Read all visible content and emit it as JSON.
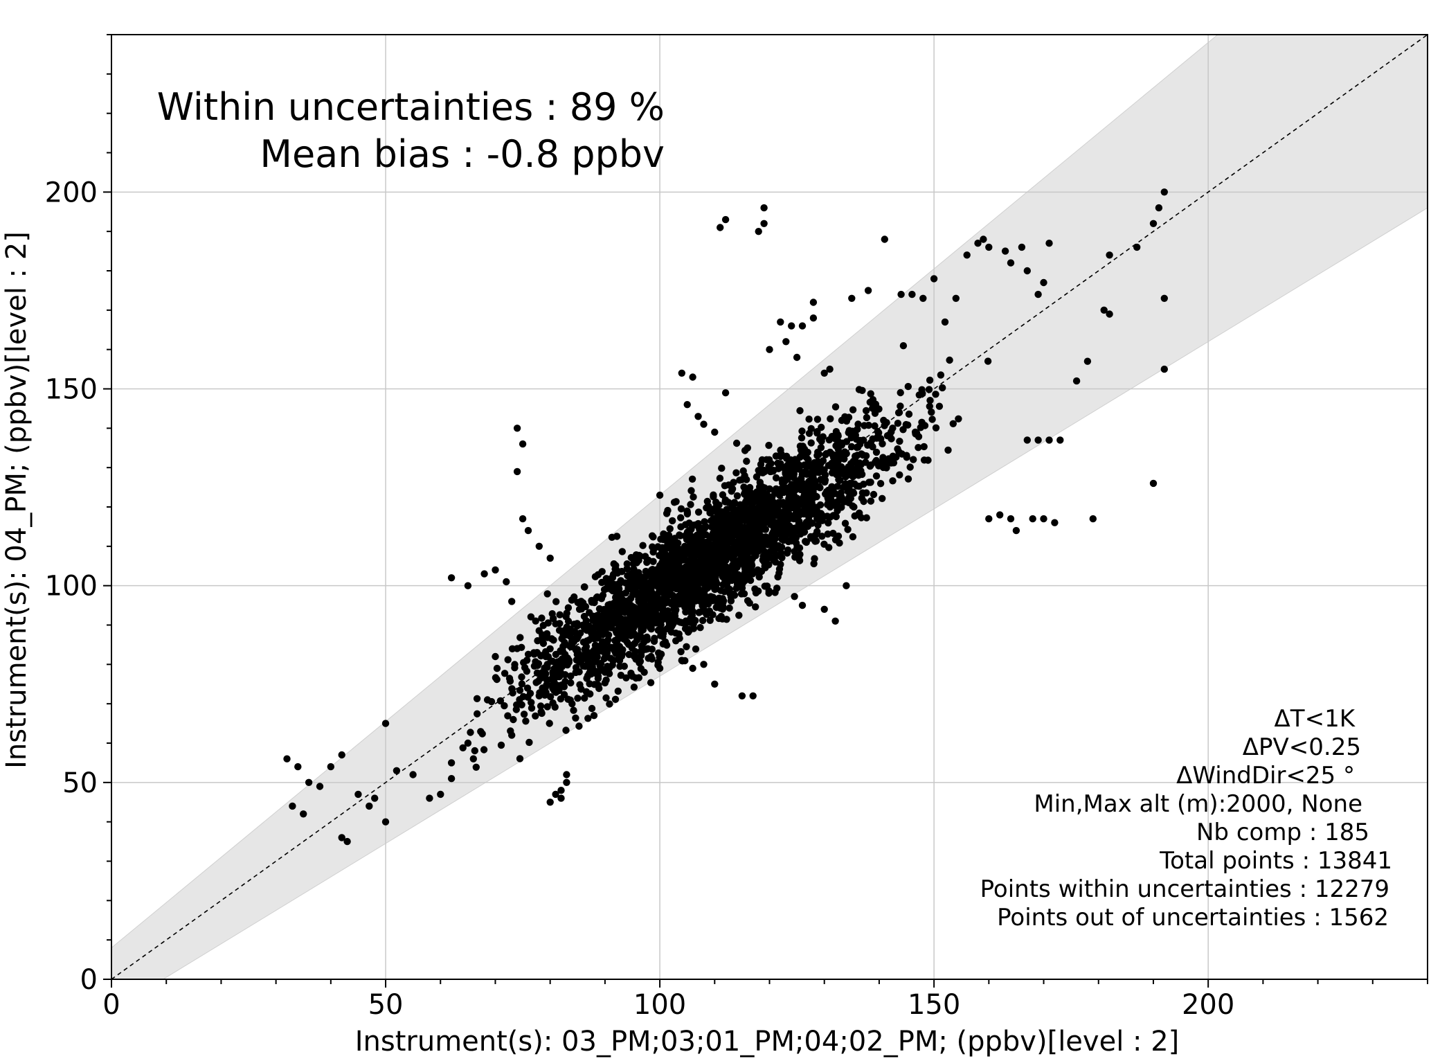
{
  "chart_data": {
    "type": "scatter",
    "title": "",
    "xlabel": "Instrument(s): 03_PM;03;01_PM;04;02_PM; (ppbv)[level : 2]",
    "ylabel": "Instrument(s): 04_PM; (ppbv)[level : 2]",
    "xlim": [
      0,
      240
    ],
    "ylim": [
      0,
      240
    ],
    "x_major_ticks": [
      0,
      50,
      100,
      150,
      200
    ],
    "y_major_ticks": [
      0,
      50,
      100,
      150,
      200
    ],
    "x_tick_labels": [
      "0",
      "50",
      "100",
      "150",
      "200"
    ],
    "y_tick_labels": [
      "0",
      "50",
      "100",
      "150",
      "200"
    ],
    "minor_tick_step": 10,
    "grid": true,
    "identity_line": {
      "style": "dashed",
      "color": "#000000"
    },
    "uncertainty_band": {
      "relative": 0.15,
      "absolute": 8,
      "color": "#e6e6e6"
    },
    "point_color": "#000000",
    "summary": {
      "within": "Within uncertainties : 89 %",
      "bias": "Mean bias : -0.8 ppbv"
    },
    "filters": [
      "ΔT<1K",
      "ΔPV<0.25",
      "ΔWindDir<25 °",
      "Min,Max alt (m):2000, None",
      "Nb comp  : 185",
      "Total points : 13841",
      "Points within uncertainties : 12279",
      "Points out of uncertainties : 1562"
    ],
    "cluster": {
      "description": "dense cloud of points along y = x",
      "x_range": [
        60,
        160
      ],
      "center_line": {
        "slope": 0.95,
        "intercept": 3
      },
      "spread": 8
    },
    "outliers": [
      [
        32,
        56
      ],
      [
        34,
        54
      ],
      [
        33,
        44
      ],
      [
        35,
        42
      ],
      [
        36,
        50
      ],
      [
        38,
        49
      ],
      [
        40,
        54
      ],
      [
        42,
        57
      ],
      [
        42,
        36
      ],
      [
        43,
        35
      ],
      [
        45,
        47
      ],
      [
        47,
        44
      ],
      [
        48,
        46
      ],
      [
        50,
        40
      ],
      [
        50,
        65
      ],
      [
        52,
        53
      ],
      [
        55,
        52
      ],
      [
        58,
        46
      ],
      [
        60,
        47
      ],
      [
        62,
        51
      ],
      [
        62,
        102
      ],
      [
        65,
        100
      ],
      [
        68,
        103
      ],
      [
        70,
        104
      ],
      [
        74,
        140
      ],
      [
        75,
        136
      ],
      [
        74,
        129
      ],
      [
        75,
        117
      ],
      [
        76,
        114
      ],
      [
        78,
        110
      ],
      [
        80,
        107
      ],
      [
        72,
        101
      ],
      [
        73,
        96
      ],
      [
        80,
        45
      ],
      [
        81,
        47
      ],
      [
        82,
        48
      ],
      [
        83,
        50
      ],
      [
        83,
        52
      ],
      [
        82,
        46
      ],
      [
        84,
        70
      ],
      [
        88,
        67
      ],
      [
        96,
        100
      ],
      [
        100,
        123
      ],
      [
        104,
        154
      ],
      [
        106,
        153
      ],
      [
        105,
        146
      ],
      [
        107,
        143
      ],
      [
        108,
        141
      ],
      [
        110,
        139
      ],
      [
        112,
        149
      ],
      [
        116,
        135
      ],
      [
        118,
        190
      ],
      [
        111,
        191
      ],
      [
        112,
        193
      ],
      [
        119,
        192
      ],
      [
        119,
        196
      ],
      [
        120,
        160
      ],
      [
        122,
        167
      ],
      [
        124,
        166
      ],
      [
        126,
        166
      ],
      [
        125,
        158
      ],
      [
        128,
        168
      ],
      [
        130,
        154
      ],
      [
        131,
        155
      ],
      [
        128,
        172
      ],
      [
        123,
        162
      ],
      [
        135,
        173
      ],
      [
        138,
        175
      ],
      [
        141,
        188
      ],
      [
        144,
        174
      ],
      [
        146,
        174
      ],
      [
        148,
        173
      ],
      [
        150,
        178
      ],
      [
        152,
        167
      ],
      [
        154,
        173
      ],
      [
        156,
        184
      ],
      [
        158,
        187
      ],
      [
        159,
        188
      ],
      [
        160,
        186
      ],
      [
        163,
        185
      ],
      [
        164,
        182
      ],
      [
        166,
        186
      ],
      [
        167,
        180
      ],
      [
        170,
        177
      ],
      [
        169,
        174
      ],
      [
        171,
        187
      ],
      [
        160,
        117
      ],
      [
        162,
        118
      ],
      [
        164,
        117
      ],
      [
        165,
        114
      ],
      [
        167,
        137
      ],
      [
        169,
        137
      ],
      [
        171,
        137
      ],
      [
        173,
        137
      ],
      [
        168,
        117
      ],
      [
        170,
        117
      ],
      [
        172,
        116
      ],
      [
        179,
        117
      ],
      [
        181,
        170
      ],
      [
        182,
        169
      ],
      [
        182,
        184
      ],
      [
        187,
        186
      ],
      [
        190,
        126
      ],
      [
        190,
        192
      ],
      [
        191,
        196
      ],
      [
        192,
        200
      ],
      [
        192,
        173
      ],
      [
        192,
        155
      ],
      [
        178,
        157
      ],
      [
        176,
        152
      ],
      [
        115,
        72
      ],
      [
        117,
        72
      ],
      [
        106,
        79
      ],
      [
        108,
        80
      ],
      [
        110,
        75
      ],
      [
        104,
        81
      ],
      [
        126,
        95
      ],
      [
        130,
        94
      ],
      [
        132,
        91
      ],
      [
        134,
        100
      ],
      [
        78,
        72
      ],
      [
        73,
        62
      ],
      [
        65,
        60
      ],
      [
        66,
        56
      ],
      [
        62,
        55
      ],
      [
        70,
        82
      ],
      [
        86,
        82
      ],
      [
        90,
        78
      ],
      [
        95,
        77
      ],
      [
        100,
        79
      ]
    ]
  }
}
